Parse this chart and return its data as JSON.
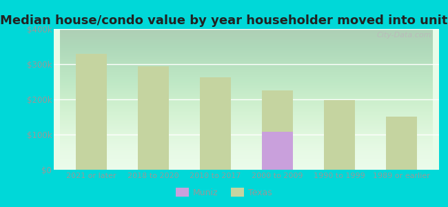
{
  "title": "Median house/condo value by year householder moved into unit",
  "categories": [
    "2021 or later",
    "2018 to 2020",
    "2010 to 2017",
    "2000 to 2009",
    "1990 to 1999",
    "1989 or earlier"
  ],
  "texas_values": [
    330000,
    295000,
    262000,
    225000,
    198000,
    150000
  ],
  "muniz_values": [
    null,
    null,
    null,
    107000,
    null,
    null
  ],
  "texas_color": "#c5d4a0",
  "muniz_color": "#c9a0dc",
  "bg_top_color": "#f0fef0",
  "bg_bottom_color": "#d0f0d8",
  "outer_background": "#00d8d8",
  "title_fontsize": 13,
  "title_color": "#222222",
  "ylim": [
    0,
    400000
  ],
  "yticks": [
    0,
    100000,
    200000,
    300000,
    400000
  ],
  "ytick_labels": [
    "$0",
    "$100k",
    "$200k",
    "$300k",
    "$400k"
  ],
  "bar_width": 0.5,
  "watermark": "City-Data.com",
  "grid_color": "#ffffff",
  "tick_color": "#999999",
  "legend_muniz": "Muniz",
  "legend_texas": "Texas"
}
